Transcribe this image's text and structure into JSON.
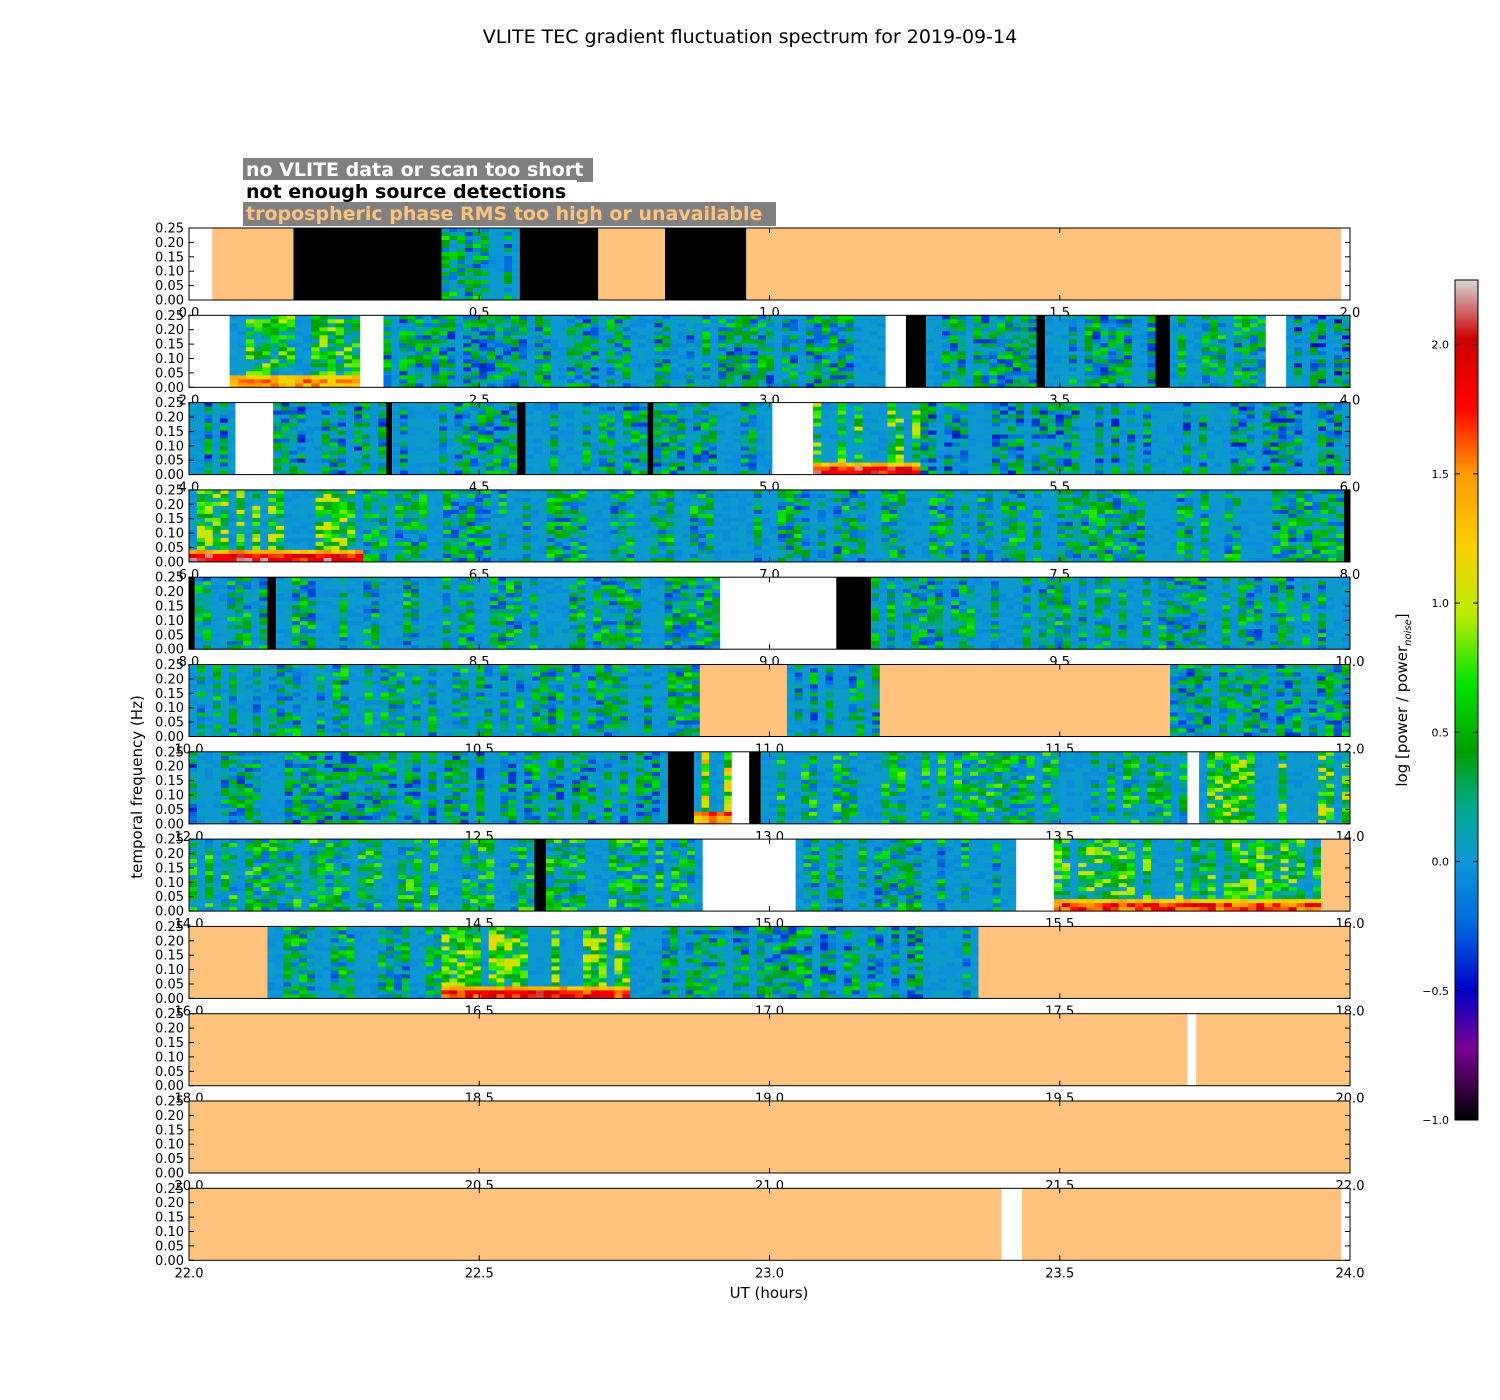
{
  "chart_data": {
    "type": "heatmap",
    "title": "VLITE TEC gradient fluctuation spectrum for 2019-09-14",
    "xlabel": "UT (hours)",
    "ylabel": "temporal frequency (Hz)",
    "colorbar_label": "log [power / power",
    "colorbar_label_sub": "noise",
    "colorbar_label_end": "]",
    "colorbar_range": [
      -1.0,
      2.25
    ],
    "colorbar_ticks": [
      "−1.0",
      "−0.5",
      "0.0",
      "0.5",
      "1.0",
      "1.5",
      "2.0"
    ],
    "colorbar_tick_values": [
      -1.0,
      -0.5,
      0.0,
      0.5,
      1.0,
      1.5,
      2.0
    ],
    "y_ticks": [
      "0.00",
      "0.05",
      "0.10",
      "0.15",
      "0.20",
      "0.25"
    ],
    "ylim": [
      0,
      0.25
    ],
    "legend": [
      {
        "label": "no VLITE data or scan too short",
        "color": "#ffffff"
      },
      {
        "label": "not enough source detections",
        "color": "#000000"
      },
      {
        "label": "tropospheric phase RMS too high or unavailable",
        "color": "#ffc37e"
      }
    ],
    "colors": {
      "white": "#ffffff",
      "black": "#000000",
      "orange": "#ffc37e",
      "baseline": "#0f98d8"
    },
    "panels": [
      {
        "xlim": [
          0,
          2
        ],
        "xticks": [
          "0.0",
          "0.5",
          "1.0",
          "1.5",
          "2.0"
        ],
        "segments": [
          {
            "start": 0.0,
            "end": 0.04,
            "status": "white"
          },
          {
            "start": 0.04,
            "end": 0.18,
            "status": "orange"
          },
          {
            "start": 0.18,
            "end": 0.435,
            "status": "black"
          },
          {
            "start": 0.435,
            "end": 0.57,
            "status": "data",
            "level": 0.2
          },
          {
            "start": 0.57,
            "end": 0.705,
            "status": "black"
          },
          {
            "start": 0.705,
            "end": 0.82,
            "status": "orange"
          },
          {
            "start": 0.82,
            "end": 0.96,
            "status": "black"
          },
          {
            "start": 0.96,
            "end": 1.985,
            "status": "orange"
          },
          {
            "start": 1.985,
            "end": 2.0,
            "status": "white"
          }
        ]
      },
      {
        "xlim": [
          2,
          4
        ],
        "xticks": [
          "2.0",
          "2.5",
          "3.0",
          "3.5",
          "4.0"
        ],
        "segments": [
          {
            "start": 2.0,
            "end": 2.07,
            "status": "white"
          },
          {
            "start": 2.07,
            "end": 2.295,
            "status": "data",
            "level": 0.45,
            "lowfreq_peak": 1.4
          },
          {
            "start": 2.295,
            "end": 2.335,
            "status": "white"
          },
          {
            "start": 2.335,
            "end": 3.2,
            "status": "data",
            "level": 0.15
          },
          {
            "start": 3.2,
            "end": 3.235,
            "status": "white"
          },
          {
            "start": 3.235,
            "end": 3.27,
            "status": "black"
          },
          {
            "start": 3.27,
            "end": 3.46,
            "status": "data",
            "level": 0.15
          },
          {
            "start": 3.46,
            "end": 3.475,
            "status": "black"
          },
          {
            "start": 3.475,
            "end": 3.665,
            "status": "data",
            "level": 0.15
          },
          {
            "start": 3.665,
            "end": 3.69,
            "status": "black"
          },
          {
            "start": 3.69,
            "end": 3.855,
            "status": "data",
            "level": 0.2
          },
          {
            "start": 3.855,
            "end": 3.89,
            "status": "white"
          },
          {
            "start": 3.89,
            "end": 4.0,
            "status": "data",
            "level": 0.0
          }
        ]
      },
      {
        "xlim": [
          4,
          6
        ],
        "xticks": [
          "4.0",
          "4.5",
          "5.0",
          "5.5",
          "6.0"
        ],
        "segments": [
          {
            "start": 4.0,
            "end": 4.08,
            "status": "data",
            "level": 0.1
          },
          {
            "start": 4.08,
            "end": 4.145,
            "status": "white"
          },
          {
            "start": 4.145,
            "end": 4.34,
            "status": "data",
            "level": 0.1
          },
          {
            "start": 4.34,
            "end": 4.35,
            "status": "black"
          },
          {
            "start": 4.35,
            "end": 4.565,
            "status": "data",
            "level": 0.15
          },
          {
            "start": 4.565,
            "end": 4.58,
            "status": "black"
          },
          {
            "start": 4.58,
            "end": 4.79,
            "status": "data",
            "level": 0.15
          },
          {
            "start": 4.79,
            "end": 4.8,
            "status": "black"
          },
          {
            "start": 4.8,
            "end": 5.005,
            "status": "data",
            "level": 0.15
          },
          {
            "start": 5.005,
            "end": 5.075,
            "status": "white"
          },
          {
            "start": 5.075,
            "end": 5.26,
            "status": "data",
            "level": 0.5,
            "lowfreq_peak": 1.9
          },
          {
            "start": 5.26,
            "end": 6.0,
            "status": "data",
            "level": 0.1
          }
        ]
      },
      {
        "xlim": [
          6,
          8
        ],
        "xticks": [
          "6.0",
          "6.5",
          "7.0",
          "7.5",
          "8.0"
        ],
        "segments": [
          {
            "start": 6.0,
            "end": 6.3,
            "status": "data",
            "level": 0.6,
            "lowfreq_peak": 1.9
          },
          {
            "start": 6.3,
            "end": 7.99,
            "status": "data",
            "level": 0.2
          },
          {
            "start": 7.99,
            "end": 8.0,
            "status": "black"
          }
        ]
      },
      {
        "xlim": [
          8,
          10
        ],
        "xticks": [
          "8.0",
          "8.5",
          "9.0",
          "9.5",
          "10.0"
        ],
        "segments": [
          {
            "start": 8.0,
            "end": 8.01,
            "status": "black"
          },
          {
            "start": 8.01,
            "end": 8.135,
            "status": "data",
            "level": 0.2
          },
          {
            "start": 8.135,
            "end": 8.15,
            "status": "black"
          },
          {
            "start": 8.15,
            "end": 8.915,
            "status": "data",
            "level": 0.2
          },
          {
            "start": 8.915,
            "end": 9.115,
            "status": "white"
          },
          {
            "start": 9.115,
            "end": 9.175,
            "status": "black"
          },
          {
            "start": 9.175,
            "end": 10.0,
            "status": "data",
            "level": 0.2
          }
        ]
      },
      {
        "xlim": [
          10,
          12
        ],
        "xticks": [
          "10.0",
          "10.5",
          "11.0",
          "11.5",
          "12.0"
        ],
        "segments": [
          {
            "start": 10.0,
            "end": 10.88,
            "status": "data",
            "level": 0.2
          },
          {
            "start": 10.88,
            "end": 11.03,
            "status": "orange"
          },
          {
            "start": 11.03,
            "end": 11.19,
            "status": "data",
            "level": 0.15
          },
          {
            "start": 11.19,
            "end": 11.69,
            "status": "orange"
          },
          {
            "start": 11.69,
            "end": 12.0,
            "status": "data",
            "level": 0.15
          }
        ]
      },
      {
        "xlim": [
          12,
          14
        ],
        "xticks": [
          "12.0",
          "12.5",
          "13.0",
          "13.5",
          "14.0"
        ],
        "segments": [
          {
            "start": 12.0,
            "end": 12.825,
            "status": "data",
            "level": 0.15
          },
          {
            "start": 12.825,
            "end": 12.87,
            "status": "black"
          },
          {
            "start": 12.87,
            "end": 12.935,
            "status": "data",
            "level": 0.9,
            "lowfreq_peak": 1.4
          },
          {
            "start": 12.935,
            "end": 12.965,
            "status": "white"
          },
          {
            "start": 12.965,
            "end": 12.985,
            "status": "black"
          },
          {
            "start": 12.985,
            "end": 13.72,
            "status": "data",
            "level": 0.3
          },
          {
            "start": 13.72,
            "end": 13.74,
            "status": "white"
          },
          {
            "start": 13.74,
            "end": 14.0,
            "status": "data",
            "level": 0.6
          }
        ]
      },
      {
        "xlim": [
          14,
          16
        ],
        "xticks": [
          "14.0",
          "14.5",
          "15.0",
          "15.5",
          "16.0"
        ],
        "segments": [
          {
            "start": 14.0,
            "end": 14.595,
            "status": "data",
            "level": 0.3
          },
          {
            "start": 14.595,
            "end": 14.615,
            "status": "black"
          },
          {
            "start": 14.615,
            "end": 14.885,
            "status": "data",
            "level": 0.3
          },
          {
            "start": 14.885,
            "end": 15.045,
            "status": "white"
          },
          {
            "start": 15.045,
            "end": 15.425,
            "status": "data",
            "level": 0.2
          },
          {
            "start": 15.425,
            "end": 15.49,
            "status": "white"
          },
          {
            "start": 15.49,
            "end": 15.95,
            "status": "data",
            "level": 0.5,
            "lowfreq_peak": 1.7
          },
          {
            "start": 15.95,
            "end": 16.0,
            "status": "orange"
          }
        ]
      },
      {
        "xlim": [
          16,
          18
        ],
        "xticks": [
          "16.0",
          "16.5",
          "17.0",
          "17.5",
          "18.0"
        ],
        "segments": [
          {
            "start": 16.0,
            "end": 16.135,
            "status": "orange"
          },
          {
            "start": 16.135,
            "end": 16.435,
            "status": "data",
            "level": 0.2
          },
          {
            "start": 16.435,
            "end": 16.76,
            "status": "data",
            "level": 0.6,
            "lowfreq_peak": 1.8
          },
          {
            "start": 16.76,
            "end": 17.36,
            "status": "data",
            "level": 0.15
          },
          {
            "start": 17.36,
            "end": 18.0,
            "status": "orange"
          }
        ]
      },
      {
        "xlim": [
          18,
          20
        ],
        "xticks": [
          "18.0",
          "18.5",
          "19.0",
          "19.5",
          "20.0"
        ],
        "segments": [
          {
            "start": 18.0,
            "end": 19.72,
            "status": "orange"
          },
          {
            "start": 19.72,
            "end": 19.735,
            "status": "white"
          },
          {
            "start": 19.735,
            "end": 20.0,
            "status": "orange"
          }
        ]
      },
      {
        "xlim": [
          20,
          22
        ],
        "xticks": [
          "20.0",
          "20.5",
          "21.0",
          "21.5",
          "22.0"
        ],
        "segments": [
          {
            "start": 20.0,
            "end": 22.0,
            "status": "orange"
          }
        ]
      },
      {
        "xlim": [
          22,
          24
        ],
        "xticks": [
          "22.0",
          "22.5",
          "23.0",
          "23.5",
          "24.0"
        ],
        "segments": [
          {
            "start": 22.0,
            "end": 23.4,
            "status": "orange"
          },
          {
            "start": 23.4,
            "end": 23.435,
            "status": "white"
          },
          {
            "start": 23.435,
            "end": 23.985,
            "status": "orange"
          },
          {
            "start": 23.985,
            "end": 24.0,
            "status": "white"
          }
        ]
      }
    ]
  }
}
